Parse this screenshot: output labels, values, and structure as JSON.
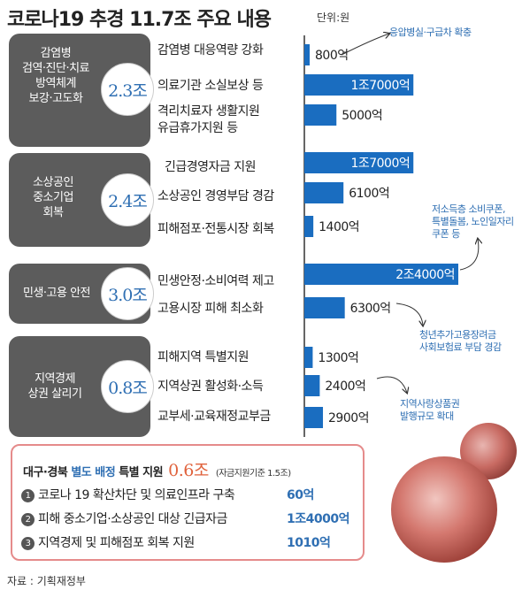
{
  "title": "코로나19 추경 11.7조 주요 내용",
  "unit": "단위:원",
  "categories": [
    {
      "name": "감염병\n검역·진단·치료\n방역체계\n보강·고도화",
      "total": "2.3조"
    },
    {
      "name": "소상공인\n중소기업\n회복",
      "total": "2.4조"
    },
    {
      "name": "민생·고용 안전",
      "total": "3.0조"
    },
    {
      "name": "지역경제\n상권 살리기",
      "total": "0.8조"
    }
  ],
  "chart_data": {
    "type": "bar",
    "orientation": "horizontal",
    "title": "코로나19 추경 11.7조 주요 내용",
    "unit": "단위:원",
    "categories": [
      "감염병 대응역량 강화",
      "의료기관 소실보상 등",
      "격리치료자 생활지원\n유급휴가지원 등",
      "긴급경영자금 지원",
      "소상공인 경영부담 경감",
      "피해점포·전통시장 회복",
      "민생안정·소비여력 제고",
      "고용시장 피해 최소화",
      "피해지역 특별지원",
      "지역상권 활성화·소득",
      "교부세·교육재정교부금"
    ],
    "values": [
      800,
      17000,
      5000,
      17000,
      6100,
      1400,
      24000,
      6300,
      1300,
      2400,
      2900
    ],
    "value_labels": [
      "800억",
      "1조7000억",
      "5000억",
      "1조7000억",
      "6100억",
      "1400억",
      "2조4000억",
      "6300억",
      "1300억",
      "2400억",
      "2900억"
    ],
    "value_unit": "억원",
    "color": "#1a6dc0"
  },
  "notes": [
    "응압병실·구급차 확충",
    "저소득층 소비쿠폰,\n특별돌봄, 노인일자리\n쿠폰 등",
    "청년추가고용장려금\n사회보험료 부담 경감",
    "지역사랑상품권\n발행규모 확대"
  ],
  "special": {
    "prefix": "대구·경북 ",
    "highlight": "별도 배정",
    "suffix": " 특별 지원",
    "amount": "0.6조",
    "basis": "(자금지원기준 1.5조)",
    "items": [
      {
        "num": "1",
        "label": "코로나 19 확산차단 및 의료인프라 구축",
        "amount": "60억"
      },
      {
        "num": "2",
        "label": "피해 중소기업·소상공인 대상 긴급자금",
        "amount": "1조4000억"
      },
      {
        "num": "3",
        "label": "지역경제 및 피해점포 회복 지원",
        "amount": "1010억"
      }
    ]
  },
  "source": "자료 : 기획재정부"
}
